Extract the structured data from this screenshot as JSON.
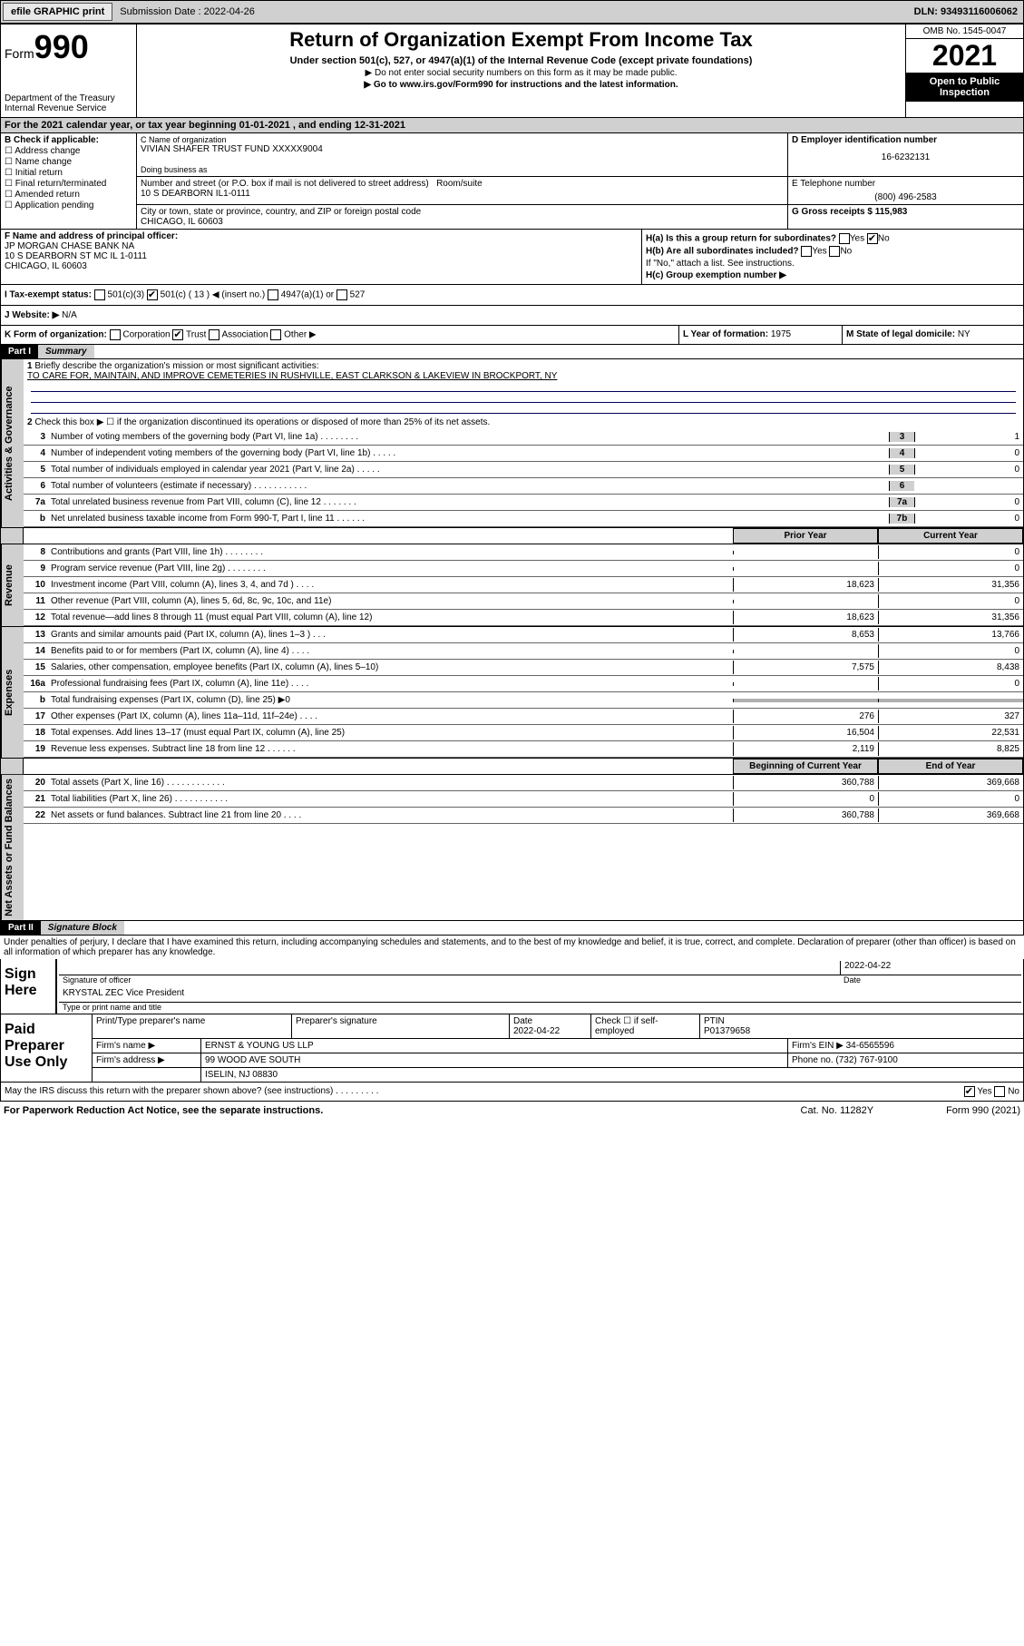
{
  "topbar": {
    "efile": "efile GRAPHIC print",
    "subdate_lbl": "Submission Date : 2022-04-26",
    "dln": "DLN: 93493116006062"
  },
  "header": {
    "form": "Form",
    "num": "990",
    "dept": "Department of the Treasury Internal Revenue Service",
    "title": "Return of Organization Exempt From Income Tax",
    "sub1": "Under section 501(c), 527, or 4947(a)(1) of the Internal Revenue Code (except private foundations)",
    "sub2": "▶ Do not enter social security numbers on this form as it may be made public.",
    "sub3": "▶ Go to www.irs.gov/Form990 for instructions and the latest information.",
    "omb": "OMB No. 1545-0047",
    "year": "2021",
    "inspect": "Open to Public Inspection"
  },
  "A": "For the 2021 calendar year, or tax year beginning 01-01-2021  , and ending 12-31-2021",
  "B": {
    "label": "B Check if applicable:",
    "items": [
      "Address change",
      "Name change",
      "Initial return",
      "Final return/terminated",
      "Amended return",
      "Application pending"
    ]
  },
  "C": {
    "lbl": "C Name of organization",
    "name": "VIVIAN SHAFER TRUST FUND XXXXX9004",
    "dba_lbl": "Doing business as",
    "street_lbl": "Number and street (or P.O. box if mail is not delivered to street address)",
    "room_lbl": "Room/suite",
    "street": "10 S DEARBORN IL1-0111",
    "city_lbl": "City or town, state or province, country, and ZIP or foreign postal code",
    "city": "CHICAGO, IL  60603"
  },
  "D": {
    "lbl": "D Employer identification number",
    "val": "16-6232131"
  },
  "E": {
    "lbl": "E Telephone number",
    "val": "(800) 496-2583"
  },
  "G": {
    "lbl": "G Gross receipts $",
    "val": "115,983"
  },
  "F": {
    "lbl": "F Name and address of principal officer:",
    "name": "JP MORGAN CHASE BANK NA",
    "addr": "10 S DEARBORN ST MC IL 1-0111",
    "city": "CHICAGO, IL  60603"
  },
  "H": {
    "a": "H(a) Is this a group return for subordinates?",
    "a_yes": "Yes",
    "a_no": "No",
    "b": "H(b) Are all subordinates included?",
    "b_note": "If \"No,\" attach a list. See instructions.",
    "c": "H(c) Group exemption number ▶"
  },
  "I": {
    "lbl": "I  Tax-exempt status:",
    "o1": "501(c)(3)",
    "o2": "501(c) ( 13 ) ◀ (insert no.)",
    "o3": "4947(a)(1) or",
    "o4": "527"
  },
  "J": {
    "lbl": "J  Website: ▶",
    "val": "N/A"
  },
  "K": {
    "lbl": "K Form of organization:",
    "o1": "Corporation",
    "o2": "Trust",
    "o3": "Association",
    "o4": "Other ▶"
  },
  "L": {
    "lbl": "L Year of formation:",
    "val": "1975"
  },
  "M": {
    "lbl": "M State of legal domicile:",
    "val": "NY"
  },
  "partI": {
    "hdr": "Part I",
    "title": "Summary",
    "q1": "Briefly describe the organization's mission or most significant activities:",
    "q1v": "TO CARE FOR, MAINTAIN, AND IMPROVE CEMETERIES IN RUSHVILLE, EAST CLARKSON & LAKEVIEW IN BROCKPORT, NY",
    "q2": "Check this box ▶ ☐ if the organization discontinued its operations or disposed of more than 25% of its net assets.",
    "lines_gov": [
      {
        "n": "3",
        "d": "Number of voting members of the governing body (Part VI, line 1a)   .   .   .   .   .   .   .   .",
        "t": "3",
        "v": "1"
      },
      {
        "n": "4",
        "d": "Number of independent voting members of the governing body (Part VI, line 1b)  .   .   .   .   .",
        "t": "4",
        "v": "0"
      },
      {
        "n": "5",
        "d": "Total number of individuals employed in calendar year 2021 (Part V, line 2a)   .   .   .   .   .",
        "t": "5",
        "v": "0"
      },
      {
        "n": "6",
        "d": "Total number of volunteers (estimate if necessary)   .   .   .   .   .   .   .   .   .   .   .",
        "t": "6",
        "v": ""
      },
      {
        "n": "7a",
        "d": "Total unrelated business revenue from Part VIII, column (C), line 12   .   .   .   .   .   .   .",
        "t": "7a",
        "v": "0"
      },
      {
        "n": "b",
        "d": "Net unrelated business taxable income from Form 990-T, Part I, line 11   .   .   .   .   .   .",
        "t": "7b",
        "v": "0"
      }
    ],
    "col_prior": "Prior Year",
    "col_curr": "Current Year",
    "rev": [
      {
        "n": "8",
        "d": "Contributions and grants (Part VIII, line 1h)   .   .   .   .   .   .   .   .",
        "p": "",
        "c": "0"
      },
      {
        "n": "9",
        "d": "Program service revenue (Part VIII, line 2g)   .   .   .   .   .   .   .   .",
        "p": "",
        "c": "0"
      },
      {
        "n": "10",
        "d": "Investment income (Part VIII, column (A), lines 3, 4, and 7d )   .   .   .   .",
        "p": "18,623",
        "c": "31,356"
      },
      {
        "n": "11",
        "d": "Other revenue (Part VIII, column (A), lines 5, 6d, 8c, 9c, 10c, and 11e)",
        "p": "",
        "c": "0"
      },
      {
        "n": "12",
        "d": "Total revenue—add lines 8 through 11 (must equal Part VIII, column (A), line 12)",
        "p": "18,623",
        "c": "31,356"
      }
    ],
    "exp": [
      {
        "n": "13",
        "d": "Grants and similar amounts paid (Part IX, column (A), lines 1–3 )   .   .   .",
        "p": "8,653",
        "c": "13,766"
      },
      {
        "n": "14",
        "d": "Benefits paid to or for members (Part IX, column (A), line 4)   .   .   .   .",
        "p": "",
        "c": "0"
      },
      {
        "n": "15",
        "d": "Salaries, other compensation, employee benefits (Part IX, column (A), lines 5–10)",
        "p": "7,575",
        "c": "8,438"
      },
      {
        "n": "16a",
        "d": "Professional fundraising fees (Part IX, column (A), line 11e)   .   .   .   .",
        "p": "",
        "c": "0"
      },
      {
        "n": "b",
        "d": "Total fundraising expenses (Part IX, column (D), line 25) ▶0",
        "p": "",
        "c": "",
        "grey": true
      },
      {
        "n": "17",
        "d": "Other expenses (Part IX, column (A), lines 11a–11d, 11f–24e)   .   .   .   .",
        "p": "276",
        "c": "327"
      },
      {
        "n": "18",
        "d": "Total expenses. Add lines 13–17 (must equal Part IX, column (A), line 25)",
        "p": "16,504",
        "c": "22,531"
      },
      {
        "n": "19",
        "d": "Revenue less expenses. Subtract line 18 from line 12   .   .   .   .   .   .",
        "p": "2,119",
        "c": "8,825"
      }
    ],
    "col_beg": "Beginning of Current Year",
    "col_end": "End of Year",
    "net": [
      {
        "n": "20",
        "d": "Total assets (Part X, line 16)   .   .   .   .   .   .   .   .   .   .   .   .",
        "p": "360,788",
        "c": "369,668"
      },
      {
        "n": "21",
        "d": "Total liabilities (Part X, line 26)   .   .   .   .   .   .   .   .   .   .   .",
        "p": "0",
        "c": "0"
      },
      {
        "n": "22",
        "d": "Net assets or fund balances. Subtract line 21 from line 20   .   .   .   .",
        "p": "360,788",
        "c": "369,668"
      }
    ],
    "vtabs": {
      "gov": "Activities & Governance",
      "rev": "Revenue",
      "exp": "Expenses",
      "net": "Net Assets or Fund Balances"
    }
  },
  "partII": {
    "hdr": "Part II",
    "title": "Signature Block",
    "decl": "Under penalties of perjury, I declare that I have examined this return, including accompanying schedules and statements, and to the best of my knowledge and belief, it is true, correct, and complete. Declaration of preparer (other than officer) is based on all information of which preparer has any knowledge."
  },
  "sign": {
    "here": "Sign Here",
    "sigoff": "Signature of officer",
    "date": "Date",
    "dateval": "2022-04-22",
    "name": "KRYSTAL ZEC  Vice President",
    "name_lbl": "Type or print name and title"
  },
  "paid": {
    "lbl": "Paid Preparer Use Only",
    "c1": "Print/Type preparer's name",
    "c2": "Preparer's signature",
    "c3": "Date",
    "c3v": "2022-04-22",
    "c4": "Check ☐ if self-employed",
    "c5": "PTIN",
    "c5v": "P01379658",
    "firm_lbl": "Firm's name    ▶",
    "firm": "ERNST & YOUNG US LLP",
    "ein_lbl": "Firm's EIN ▶",
    "ein": "34-6565596",
    "addr_lbl": "Firm's address ▶",
    "addr": "99 WOOD AVE SOUTH",
    "addr2": "ISELIN, NJ  08830",
    "phone_lbl": "Phone no.",
    "phone": "(732) 767-9100",
    "discuss": "May the IRS discuss this return with the preparer shown above? (see instructions)   .   .   .   .   .   .   .   .   .",
    "yes": "Yes",
    "no": "No"
  },
  "footer": {
    "left": "For Paperwork Reduction Act Notice, see the separate instructions.",
    "mid": "Cat. No. 11282Y",
    "right": "Form 990 (2021)"
  }
}
